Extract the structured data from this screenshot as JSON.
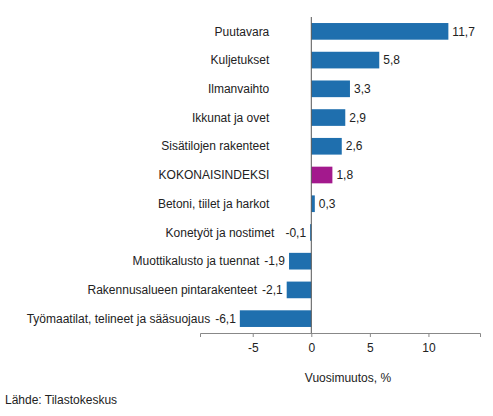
{
  "chart_data": {
    "type": "bar",
    "orientation": "horizontal",
    "categories": [
      "Puutavara",
      "Kuljetukset",
      "Ilmanvaihto",
      "Ikkunat ja ovet",
      "Sisätilojen rakenteet",
      "KOKONAISINDEKSI",
      "Betoni, tiilet ja harkot",
      "Konetyöt ja nostimet",
      "Muottikalusto ja tuennat",
      "Rakennusalueen pintarakenteet",
      "Työmaatilat, telineet ja sääsuojaus"
    ],
    "values": [
      11.7,
      5.8,
      3.3,
      2.9,
      2.6,
      1.8,
      0.3,
      -0.1,
      -1.9,
      -2.1,
      -6.1
    ],
    "value_labels": [
      "11,7",
      "5,8",
      "3,3",
      "2,9",
      "2,6",
      "1,8",
      "0,3",
      "-0,1",
      "-1,9",
      "-2,1",
      "-6,1"
    ],
    "colors": [
      "#1f6fae",
      "#1f6fae",
      "#1f6fae",
      "#1f6fae",
      "#1f6fae",
      "#a3198d",
      "#1f6fae",
      "#1f6fae",
      "#1f6fae",
      "#1f6fae",
      "#1f6fae"
    ],
    "data_labels": true,
    "xlim": [
      -9.5,
      14.4
    ],
    "xticks": [
      -5,
      0,
      5,
      10
    ],
    "xlabel": "Vuosimuutos, %",
    "source": "Lähde: Tilastokeskus",
    "grid": false
  }
}
